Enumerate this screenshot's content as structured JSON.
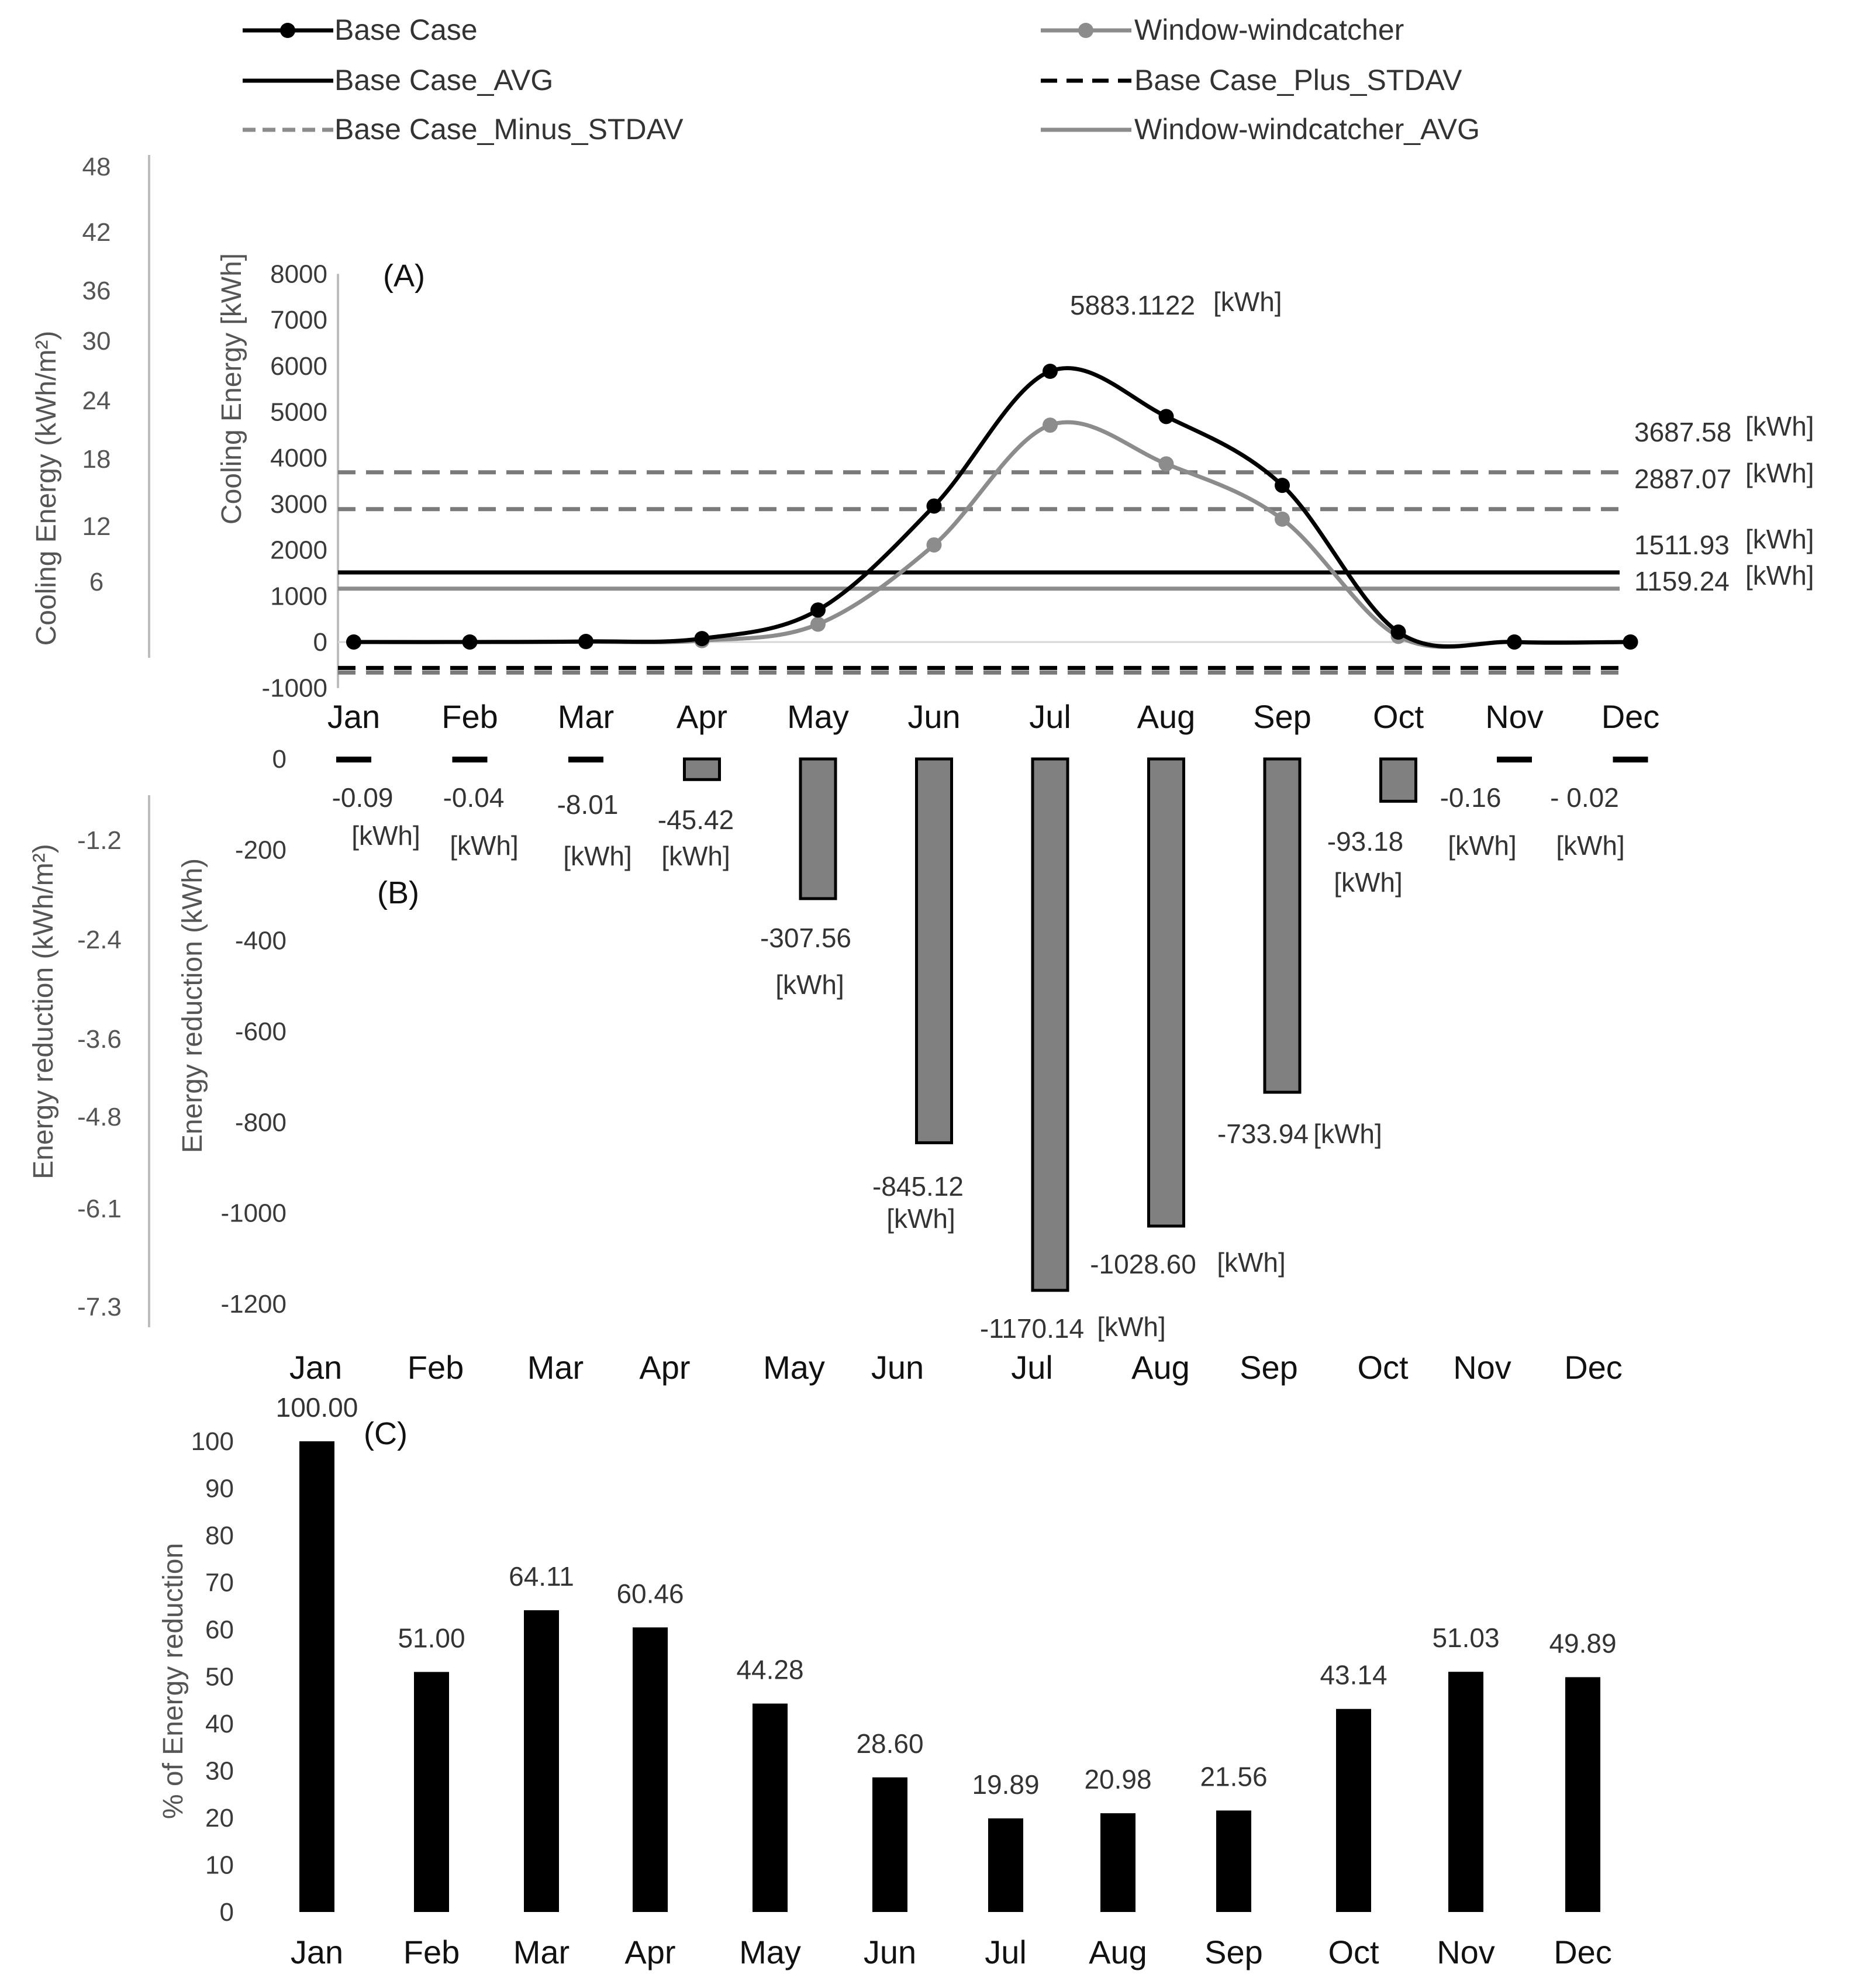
{
  "months": [
    "Jan",
    "Feb",
    "Mar",
    "Apr",
    "May",
    "Jun",
    "Jul",
    "Aug",
    "Sep",
    "Oct",
    "Nov",
    "Dec"
  ],
  "legend": [
    {
      "label": "Base Case",
      "style": "line-marker",
      "color": "#000000"
    },
    {
      "label": "Window-windcatcher",
      "style": "line-marker",
      "color": "#8c8c8c"
    },
    {
      "label": "Base Case_AVG",
      "style": "solid",
      "color": "#000000"
    },
    {
      "label": "Base Case_Plus_STDAV",
      "style": "dashed",
      "color": "#000000"
    },
    {
      "label": "Base Case_Minus_STDAV",
      "style": "dashed",
      "color": "#8c8c8c"
    },
    {
      "label": "Window-windcatcher_AVG",
      "style": "solid",
      "color": "#8c8c8c"
    }
  ],
  "chart_data": [
    {
      "id": "A",
      "panel_label": "(A)",
      "type": "line",
      "ylabel": "Cooling Energy [kWh]",
      "ylabel_secondary": "Cooling Energy (kWh/m²)",
      "ylim": [
        -1000,
        8000
      ],
      "yticks": [
        8000,
        7000,
        6000,
        5000,
        4000,
        3000,
        2000,
        1000,
        0,
        -1000
      ],
      "yticks_secondary": [
        "48",
        "42",
        "36",
        "30",
        "24",
        "18",
        "12",
        "6"
      ],
      "categories": [
        "Jan",
        "Feb",
        "Mar",
        "Apr",
        "May",
        "Jun",
        "Jul",
        "Aug",
        "Sep",
        "Oct",
        "Nov",
        "Dec"
      ],
      "series": [
        {
          "name": "Base Case",
          "values": [
            0.09,
            0.08,
            12.5,
            75,
            695,
            2955,
            5883.1,
            4900,
            3404,
            216,
            0.31,
            0.04
          ]
        },
        {
          "name": "Window-windcatcher",
          "values": [
            0,
            0.04,
            4.5,
            30,
            387,
            2110,
            4713,
            3871,
            2670,
            123,
            0.15,
            0.02
          ]
        }
      ],
      "reference_lines": [
        {
          "name": "Base Case_Plus_STDAV",
          "value": 3687.58,
          "label": "3687.58",
          "unit": "[kWh]"
        },
        {
          "name": "Base Case_Minus_STDAV",
          "value": 2887.07,
          "label": "2887.07",
          "unit": "[kWh]"
        },
        {
          "name": "Base Case_AVG",
          "value": 1511.93,
          "label": "1511.93",
          "unit": "[kWh]"
        },
        {
          "name": "Window-windcatcher_AVG",
          "value": 1159.24,
          "label": "1159.24",
          "unit": "[kWh]"
        },
        {
          "name": "Base Case_Minus_STDAV (lower)",
          "value": -663.72
        },
        {
          "name": "Base Case_Plus_STDAV (lower)",
          "value": -563.72
        }
      ],
      "annotations": [
        {
          "text": "5883.1122",
          "unit": "[kWh]",
          "month": "Jul"
        }
      ]
    },
    {
      "id": "B",
      "panel_label": "(B)",
      "type": "bar",
      "ylabel": "Energy reduction (kWh)",
      "ylabel_secondary": "Energy reduction (kWh/m²)",
      "ylim": [
        -1200,
        0
      ],
      "yticks": [
        0,
        -200,
        -400,
        -600,
        -800,
        -1000,
        -1200
      ],
      "yticks_secondary": [
        "-1.2",
        "-2.4",
        "-3.6",
        "-4.8",
        "-6.1",
        "-7.3"
      ],
      "categories": [
        "Jan",
        "Feb",
        "Mar",
        "Apr",
        "May",
        "Jun",
        "Jul",
        "Aug",
        "Sep",
        "Oct",
        "Nov",
        "Dec"
      ],
      "values": [
        -0.09,
        -0.04,
        -8.01,
        -45.42,
        -307.56,
        -845.12,
        -1170.14,
        -1028.6,
        -733.94,
        -93.18,
        -0.16,
        -0.02
      ],
      "value_labels": [
        "-0.09",
        "-0.04",
        "-8.01",
        "-45.42",
        "-307.56",
        "-845.12",
        "-1170.14",
        "-1028.60",
        "-733.94",
        "-93.18",
        "-0.16",
        "- 0.02"
      ],
      "unit_label": "[kWh]"
    },
    {
      "id": "C",
      "panel_label": "(C)",
      "type": "bar",
      "ylabel": "% of Energy reduction",
      "ylim": [
        0,
        100
      ],
      "yticks": [
        100,
        90,
        80,
        70,
        60,
        50,
        40,
        30,
        20,
        10,
        0
      ],
      "categories": [
        "Jan",
        "Feb",
        "Mar",
        "Apr",
        "May",
        "Jun",
        "Jul",
        "Aug",
        "Sep",
        "Oct",
        "Nov",
        "Dec"
      ],
      "values": [
        100.0,
        51.0,
        64.11,
        60.46,
        44.28,
        28.6,
        19.89,
        20.98,
        21.56,
        43.14,
        51.03,
        49.89
      ],
      "value_labels": [
        "100.00",
        "51.00",
        "64.11",
        "60.46",
        "44.28",
        "28.60",
        "19.89",
        "20.98",
        "21.56",
        "43.14",
        "51.03",
        "49.89"
      ]
    }
  ]
}
